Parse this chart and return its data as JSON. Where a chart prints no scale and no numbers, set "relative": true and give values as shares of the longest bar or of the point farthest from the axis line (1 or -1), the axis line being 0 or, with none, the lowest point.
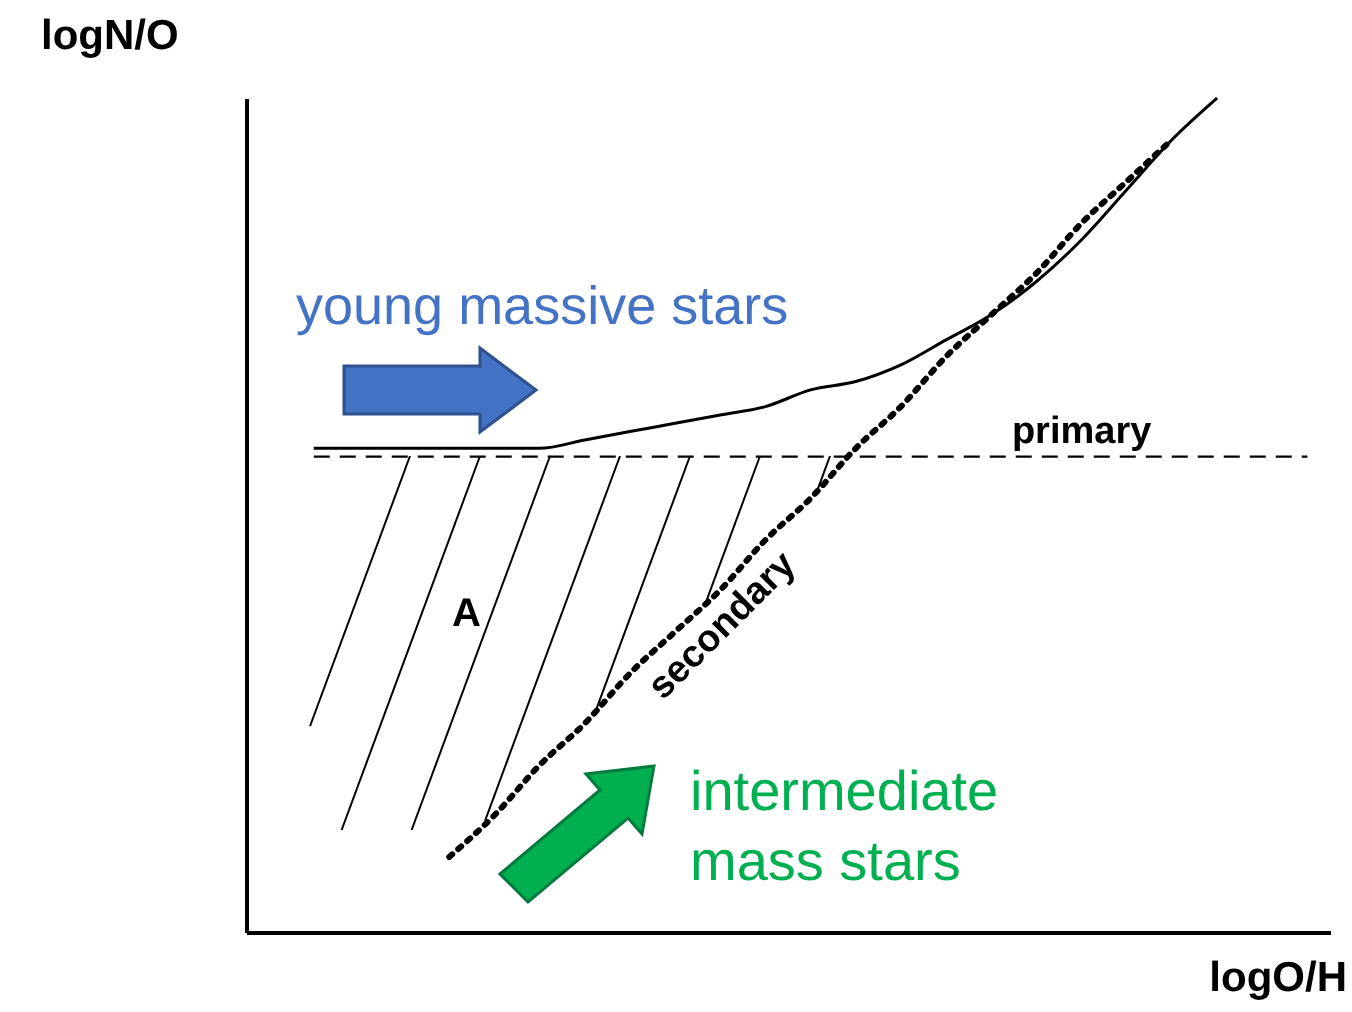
{
  "chart_data": {
    "type": "line",
    "relative": true,
    "xlabel": "logO/H",
    "ylabel": "logN/O",
    "categories": [
      null,
      null,
      null,
      null,
      null,
      null,
      null,
      null,
      null,
      null,
      null,
      null,
      null,
      null,
      null,
      null,
      null,
      null,
      null,
      null,
      null,
      null,
      null,
      null
    ],
    "series": [
      {
        "color": "#000000",
        "line_style": "solid",
        "values": [
          null,
          0.58,
          0.58,
          0.58,
          0.58,
          0.58,
          0.58,
          0.59,
          0.6,
          0.61,
          0.62,
          0.63,
          0.65,
          0.66,
          0.68,
          0.71,
          0.74,
          0.78,
          0.83,
          0.89,
          0.95,
          1,
          null,
          null
        ]
      },
      {
        "name": "primary",
        "color": "#000000",
        "line_style": "dashed",
        "values": [
          null,
          0.57,
          0.57,
          0.57,
          0.57,
          0.57,
          0.57,
          0.57,
          0.57,
          0.57,
          0.57,
          0.57,
          0.57,
          0.57,
          0.57,
          0.57,
          0.57,
          0.57,
          0.57,
          0.57,
          0.57,
          0.57,
          0.57,
          0.57
        ]
      },
      {
        "name": "secondary",
        "color": "#000000",
        "line_style": "dotted",
        "values": [
          null,
          null,
          null,
          null,
          0.09,
          0.14,
          0.2,
          0.25,
          0.31,
          0.36,
          0.41,
          0.47,
          0.52,
          0.58,
          0.63,
          0.69,
          0.74,
          0.79,
          0.85,
          0.9,
          0.95,
          null,
          null,
          null
        ]
      }
    ],
    "annotations": [
      "young massive stars",
      "A",
      "intermediate mass stars"
    ]
  }
}
